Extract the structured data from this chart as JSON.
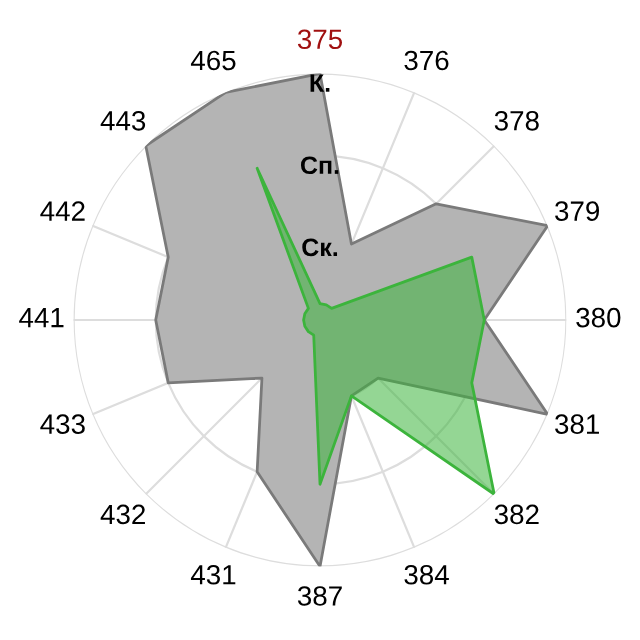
{
  "chart_data": {
    "type": "radar",
    "categories": [
      "375",
      "376",
      "378",
      "379",
      "380",
      "381",
      "382",
      "384",
      "387",
      "431",
      "432",
      "433",
      "441",
      "442",
      "443",
      "465"
    ],
    "ylim": [
      0,
      3
    ],
    "yticks": [
      {
        "value": 1,
        "label": "Ск."
      },
      {
        "value": 2,
        "label": "Сп."
      },
      {
        "value": 3,
        "label": "К."
      }
    ],
    "grid": true,
    "legend": false,
    "series": [
      {
        "color": "#b4b4b4",
        "values": [
          3,
          1,
          2,
          3,
          2,
          3,
          1,
          1,
          3,
          2,
          1,
          2,
          2,
          2,
          3,
          3
        ]
      },
      {
        "color": "#3cb43c",
        "values": [
          0.2,
          0.2,
          0.2,
          2,
          2,
          2,
          3,
          1,
          2,
          0.2,
          0.2,
          0.2,
          0.2,
          0.2,
          0.2,
          2
        ]
      }
    ]
  }
}
